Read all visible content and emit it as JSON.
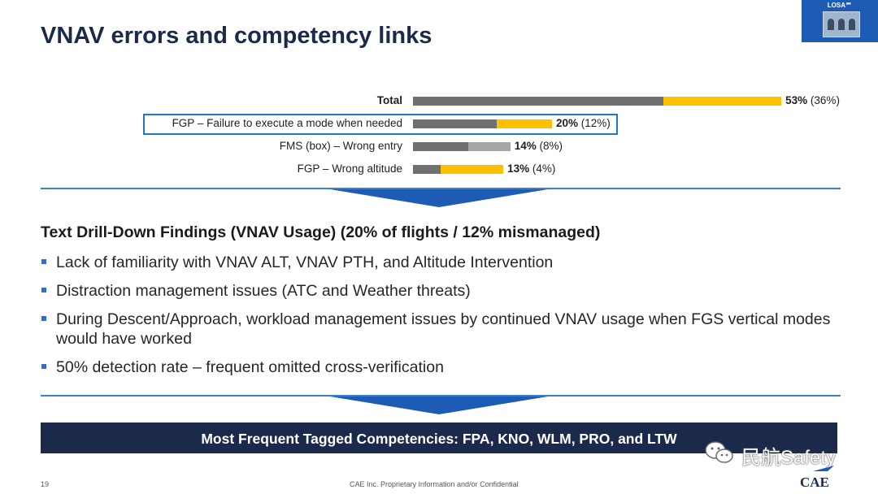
{
  "slide": {
    "title": "VNAV errors and competency links",
    "logo_text": "LOSA℠",
    "subheading": "Text Drill-Down Findings (VNAV Usage) (20% of flights / 12% mismanaged)",
    "bullets": [
      "Lack of familiarity with VNAV ALT, VNAV PTH, and Altitude Intervention",
      "Distraction management issues (ATC and Weather threats)",
      "During Descent/Approach, workload management issues by continued VNAV usage when FGS vertical modes would have worked",
      "50% detection rate – frequent omitted cross-verification"
    ],
    "banner": "Most Frequent Tagged Competencies: FPA, KNO, WLM, PRO, and LTW",
    "page_number": "19",
    "footer": "CAE Inc. Proprietary Information and/or Confidential",
    "watermark": "民航Safety",
    "brand": "CAE"
  },
  "chart_data": {
    "type": "bar",
    "orientation": "horizontal",
    "stacked": true,
    "categories": [
      "Total",
      "FGP – Failure to execute a mode when needed",
      "FMS (box) – Wrong entry",
      "FGP – Wrong altitude"
    ],
    "totals": [
      53,
      20,
      14,
      13
    ],
    "mismanaged": [
      36,
      12,
      8,
      4
    ],
    "data_labels": [
      {
        "main": "53%",
        "paren": "(36%)"
      },
      {
        "main": "20%",
        "paren": "(12%)"
      },
      {
        "main": "14%",
        "paren": "(8%)"
      },
      {
        "main": "13%",
        "paren": "(4%)"
      }
    ],
    "highlighted_category": "FGP – Failure to execute a mode when needed",
    "colors": {
      "first_segment": "#707070",
      "second_segment": "#ffc000",
      "second_segment_alt": "#a6a6a6",
      "highlight_box": "#1e78c8"
    },
    "grid": false,
    "legend": "none"
  },
  "colors": {
    "title": "#1b2a4a",
    "accent": "#1e5bb5",
    "banner": "#1b2a4a",
    "bullet": "#2f6fc7"
  }
}
